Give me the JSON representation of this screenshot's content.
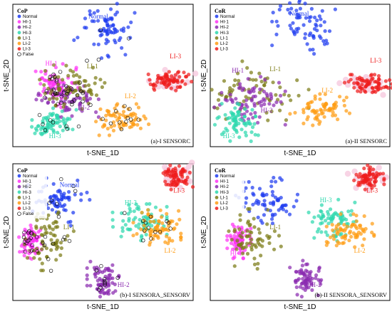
{
  "colors": {
    "Normal": "#1f3cf0",
    "HI-1": "#ff33f5",
    "HI-2": "#8b2bb0",
    "HI-3": "#2ed8ae",
    "LI-1": "#7c7c16",
    "LI-2": "#ff9c14",
    "LI-3": "#ee1c1c",
    "False": "#000000",
    "LI-3-halo": "#f6c9df"
  },
  "chart_data": [
    {
      "type": "scatter",
      "panel": "(a)-I SENSORC",
      "tag": "(a)-I SENSORC",
      "xlabel": "t-SNE_1D",
      "ylabel": "t-SNE_2D",
      "legend_title": "CoP",
      "legend_placement": "top-left",
      "legend": [
        "Normal",
        "HI-1",
        "HI-2",
        "HI-3",
        "LI-1",
        "LI-2",
        "LI-3",
        "False"
      ],
      "clusters": [
        {
          "series": "Normal",
          "center": [
            0.5,
            0.82
          ],
          "spread": [
            0.08,
            0.09
          ]
        },
        {
          "series": "HI-1",
          "center": [
            0.23,
            0.43
          ],
          "spread": [
            0.06,
            0.07
          ]
        },
        {
          "series": "HI-2",
          "center": [
            0.3,
            0.34
          ],
          "spread": [
            0.08,
            0.06
          ]
        },
        {
          "series": "LI-1",
          "center": [
            0.34,
            0.42
          ],
          "spread": [
            0.09,
            0.07
          ]
        },
        {
          "series": "HI-3",
          "center": [
            0.22,
            0.16
          ],
          "spread": [
            0.06,
            0.05
          ]
        },
        {
          "series": "LI-2",
          "center": [
            0.61,
            0.19
          ],
          "spread": [
            0.08,
            0.05
          ]
        },
        {
          "series": "LI-3",
          "center": [
            0.87,
            0.46
          ],
          "spread": [
            0.06,
            0.03
          ]
        }
      ],
      "labels": [
        {
          "text": "Normal",
          "series": "Normal",
          "pos": [
            0.42,
            0.9
          ]
        },
        {
          "text": "HI-1",
          "series": "HI-1",
          "pos": [
            0.18,
            0.57
          ]
        },
        {
          "text": "LI-1",
          "series": "LI-1",
          "pos": [
            0.41,
            0.55
          ]
        },
        {
          "text": "HI-2",
          "series": "HI-2",
          "pos": [
            0.36,
            0.26
          ]
        },
        {
          "text": "HI-3",
          "series": "HI-3",
          "pos": [
            0.2,
            0.06
          ]
        },
        {
          "text": "LI-2",
          "series": "LI-2",
          "pos": [
            0.62,
            0.34
          ]
        },
        {
          "text": "LI-3",
          "series": "LI-3",
          "pos": [
            0.87,
            0.62
          ]
        }
      ]
    },
    {
      "type": "scatter",
      "panel": "(a)-II SENSORC",
      "tag": "(a)-II SENSORC",
      "xlabel": "t-SNE_1D",
      "ylabel": "t-SNE_2D",
      "legend_title": "CoR",
      "legend_placement": "top-left",
      "legend": [
        "Normal",
        "HI-1",
        "HI-2",
        "HI-3",
        "LI-1",
        "LI-2",
        "LI-3"
      ],
      "clusters": [
        {
          "series": "Normal",
          "center": [
            0.52,
            0.85
          ],
          "spread": [
            0.08,
            0.09
          ]
        },
        {
          "series": "LI-1",
          "center": [
            0.24,
            0.38
          ],
          "spread": [
            0.14,
            0.1
          ]
        },
        {
          "series": "HI-2",
          "center": [
            0.22,
            0.33
          ],
          "spread": [
            0.09,
            0.08
          ]
        },
        {
          "series": "HI-3",
          "center": [
            0.15,
            0.17
          ],
          "spread": [
            0.06,
            0.06
          ]
        },
        {
          "series": "LI-2",
          "center": [
            0.62,
            0.26
          ],
          "spread": [
            0.08,
            0.05
          ]
        },
        {
          "series": "LI-3",
          "center": [
            0.88,
            0.44
          ],
          "spread": [
            0.06,
            0.03
          ]
        }
      ],
      "labels": [
        {
          "text": "Normal",
          "series": "Normal",
          "pos": [
            0.44,
            0.92
          ]
        },
        {
          "text": "HI-1",
          "series": "HI-2",
          "pos": [
            0.12,
            0.52
          ]
        },
        {
          "text": "LI-1",
          "series": "LI-1",
          "pos": [
            0.33,
            0.53
          ]
        },
        {
          "text": "HI-2",
          "series": "HI-2",
          "pos": [
            0.28,
            0.24
          ]
        },
        {
          "text": "HI-3",
          "series": "HI-3",
          "pos": [
            0.07,
            0.06
          ]
        },
        {
          "text": "LI-2",
          "series": "LI-2",
          "pos": [
            0.62,
            0.38
          ]
        },
        {
          "text": "LI-3",
          "series": "LI-3",
          "pos": [
            0.89,
            0.59
          ]
        }
      ]
    },
    {
      "type": "scatter",
      "panel": "(b)-I SENSORA_SENSORV",
      "tag": "(b)-I SENSORA_SENSORV",
      "xlabel": "t-SNE_1D",
      "ylabel": "t-SNE_2D",
      "legend_title": "CoP",
      "legend_placement": "top-left",
      "legend": [
        "Normal",
        "HI-1",
        "HI-2",
        "HI-3",
        "LI-1",
        "LI-2",
        "LI-3",
        "False"
      ],
      "clusters": [
        {
          "series": "Normal",
          "center": [
            0.25,
            0.72
          ],
          "spread": [
            0.08,
            0.08
          ]
        },
        {
          "series": "HI-1",
          "center": [
            0.1,
            0.43
          ],
          "spread": [
            0.03,
            0.06
          ]
        },
        {
          "series": "LI-1",
          "center": [
            0.19,
            0.44
          ],
          "spread": [
            0.07,
            0.1
          ]
        },
        {
          "series": "HI-3",
          "center": [
            0.7,
            0.59
          ],
          "spread": [
            0.07,
            0.07
          ]
        },
        {
          "series": "LI-2",
          "center": [
            0.8,
            0.53
          ],
          "spread": [
            0.06,
            0.06
          ]
        },
        {
          "series": "HI-2",
          "center": [
            0.5,
            0.16
          ],
          "spread": [
            0.04,
            0.06
          ]
        },
        {
          "series": "LI-3",
          "center": [
            0.91,
            0.9
          ],
          "spread": [
            0.04,
            0.04
          ]
        }
      ],
      "labels": [
        {
          "text": "Normal",
          "series": "Normal",
          "pos": [
            0.26,
            0.83
          ]
        },
        {
          "text": "HI-1",
          "series": "HI-1",
          "pos": [
            0.07,
            0.34
          ]
        },
        {
          "text": "LI-1",
          "series": "LI-1",
          "pos": [
            0.28,
            0.52
          ]
        },
        {
          "text": "HI-3",
          "series": "HI-3",
          "pos": [
            0.62,
            0.7
          ]
        },
        {
          "text": "LI-2",
          "series": "LI-2",
          "pos": [
            0.84,
            0.35
          ]
        },
        {
          "text": "HI-2",
          "series": "HI-2",
          "pos": [
            0.58,
            0.1
          ]
        },
        {
          "text": "LI-3",
          "series": "LI-3",
          "pos": [
            0.89,
            0.79
          ]
        }
      ]
    },
    {
      "type": "scatter",
      "panel": "(b)-II SENSORA_SENSORV",
      "tag": "(b)-II SENSORA_SENSORV",
      "xlabel": "t-SNE_1D",
      "ylabel": "t-SNE_2D",
      "legend_title": "CoR",
      "legend_placement": "top-left",
      "legend": [
        "Normal",
        "HI-1",
        "HI-2",
        "HI-3",
        "LI-1",
        "LI-2",
        "LI-3"
      ],
      "clusters": [
        {
          "series": "Normal",
          "center": [
            0.31,
            0.74
          ],
          "spread": [
            0.08,
            0.08
          ]
        },
        {
          "series": "HI-1",
          "center": [
            0.16,
            0.44
          ],
          "spread": [
            0.03,
            0.06
          ]
        },
        {
          "series": "LI-1",
          "center": [
            0.24,
            0.45
          ],
          "spread": [
            0.07,
            0.1
          ]
        },
        {
          "series": "HI-3",
          "center": [
            0.68,
            0.59
          ],
          "spread": [
            0.06,
            0.07
          ]
        },
        {
          "series": "LI-2",
          "center": [
            0.78,
            0.5
          ],
          "spread": [
            0.06,
            0.06
          ]
        },
        {
          "series": "HI-2",
          "center": [
            0.53,
            0.16
          ],
          "spread": [
            0.04,
            0.06
          ]
        },
        {
          "series": "LI-3",
          "center": [
            0.88,
            0.9
          ],
          "spread": [
            0.04,
            0.04
          ]
        }
      ],
      "labels": [
        {
          "text": "HI-3",
          "series": "HI-3",
          "pos": [
            0.61,
            0.72
          ]
        },
        {
          "text": "LI-1",
          "series": "LI-1",
          "pos": [
            0.33,
            0.52
          ]
        },
        {
          "text": "HI-1",
          "series": "HI-1",
          "pos": [
            0.11,
            0.33
          ]
        },
        {
          "text": "LI-2",
          "series": "LI-2",
          "pos": [
            0.8,
            0.35
          ]
        },
        {
          "text": "HI-2",
          "series": "HI-2",
          "pos": [
            0.55,
            0.1
          ]
        },
        {
          "text": "LI-3",
          "series": "LI-3",
          "pos": [
            0.87,
            0.79
          ]
        }
      ]
    }
  ]
}
